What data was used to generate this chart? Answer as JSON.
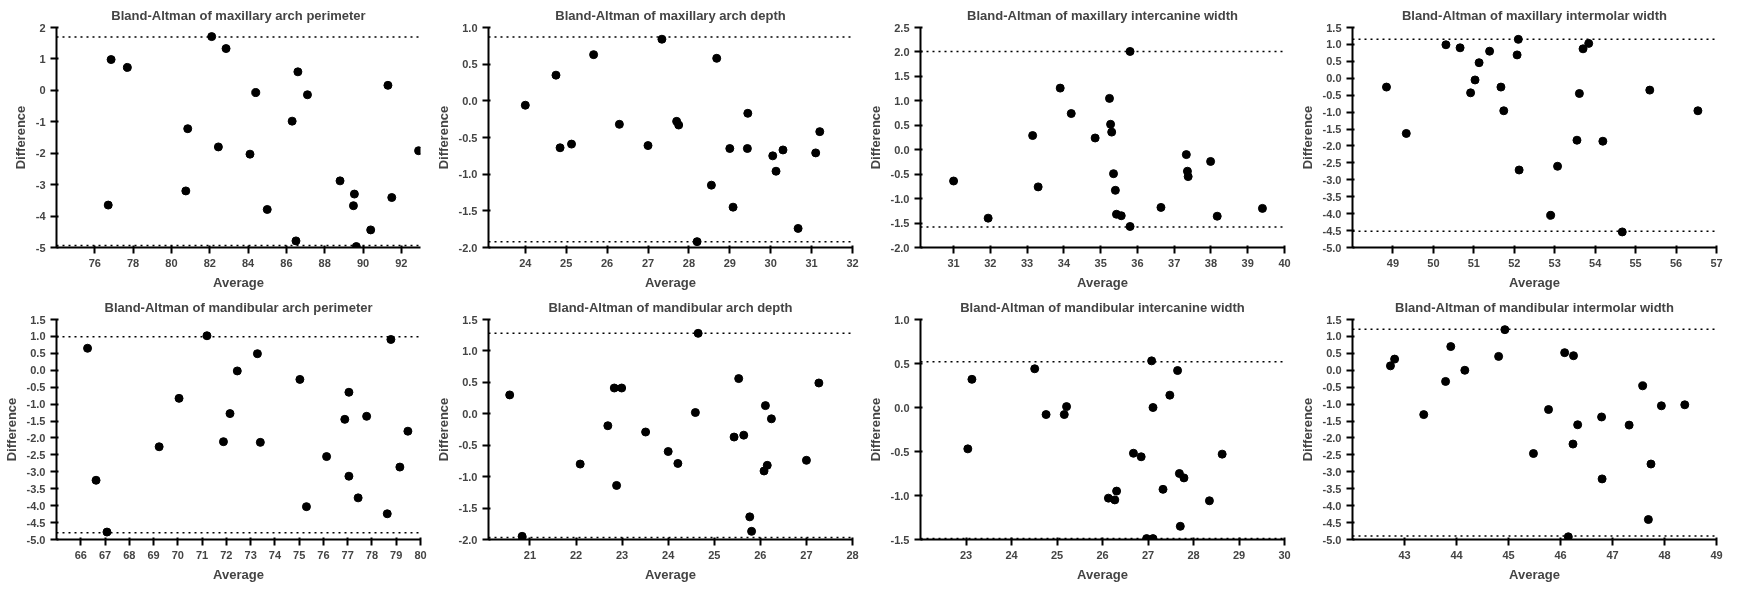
{
  "chart_data": [
    {
      "type": "scatter",
      "title": "Bland-Altman of maxillary arch perimeter",
      "xlabel": "Average",
      "ylabel": "Difference",
      "marker": "circle",
      "grid": false,
      "xlim": [
        74,
        93
      ],
      "xticks": [
        76,
        78,
        80,
        82,
        84,
        86,
        88,
        90,
        92
      ],
      "ylim": [
        -5,
        2
      ],
      "yticks": [
        -5,
        -4,
        -3,
        -2,
        -1,
        0,
        1,
        2
      ],
      "ref_lines": [
        {
          "axis": "y",
          "value": 1.7,
          "line_style": "dotted"
        },
        {
          "axis": "y",
          "value": -4.94,
          "line_style": "dotted"
        }
      ],
      "series": [
        {
          "color": "#000000",
          "x": [
            76.85,
            77.7,
            82.1,
            82.85,
            84.4,
            86.6,
            87.1,
            91.3,
            86.3,
            80.85,
            82.45,
            84.1,
            92.9,
            76.7,
            80.75,
            88.8,
            89.55,
            89.5,
            91.5,
            85.0,
            90.4,
            86.5,
            89.65
          ],
          "values": [
            0.98,
            0.73,
            1.71,
            1.33,
            -0.07,
            0.59,
            -0.14,
            0.16,
            -0.98,
            -1.22,
            -1.8,
            -2.03,
            -1.92,
            -3.65,
            -3.2,
            -2.88,
            -3.3,
            -3.67,
            -3.41,
            -3.79,
            -4.44,
            -4.79,
            -4.97
          ]
        }
      ]
    },
    {
      "type": "scatter",
      "title": "Bland-Altman of maxillary arch depth",
      "xlabel": "Average",
      "ylabel": "Difference",
      "marker": "circle",
      "grid": false,
      "xlim": [
        23.1,
        32
      ],
      "xticks": [
        24,
        25,
        26,
        27,
        28,
        29,
        30,
        31,
        32
      ],
      "ylim": [
        -2,
        1
      ],
      "yticks": [
        {
          "value": -2,
          "label": "-2.0"
        },
        -1.5,
        {
          "value": -1,
          "label": "-1.0"
        },
        -0.5,
        {
          "value": 0,
          "label": "0.0"
        },
        0.5,
        {
          "value": 1,
          "label": "1.0"
        }
      ],
      "ref_lines": [
        {
          "axis": "y",
          "value": 0.87,
          "line_style": "dotted"
        },
        {
          "axis": "y",
          "value": -1.92,
          "line_style": "dotted"
        }
      ],
      "series": [
        {
          "color": "#000000",
          "x": [
            24.0,
            24.75,
            25.67,
            27.34,
            28.68,
            24.85,
            25.13,
            26.3,
            27.0,
            27.7,
            27.75,
            29.44,
            29.0,
            29.43,
            30.05,
            30.3,
            30.13,
            31.2,
            31.1,
            28.55,
            29.08,
            30.67,
            28.2
          ],
          "values": [
            -0.06,
            0.35,
            0.63,
            0.84,
            0.58,
            -0.64,
            -0.59,
            -0.32,
            -0.61,
            -0.28,
            -0.33,
            -0.17,
            -0.65,
            -0.65,
            -0.75,
            -0.67,
            -0.96,
            -0.42,
            -0.71,
            -1.15,
            -1.45,
            -1.74,
            -1.92
          ]
        }
      ]
    },
    {
      "type": "scatter",
      "title": "Bland-Altman of maxillary intercanine width",
      "xlabel": "Average",
      "ylabel": "Difference",
      "marker": "circle",
      "grid": false,
      "xlim": [
        30.1,
        40
      ],
      "xticks": [
        31,
        32,
        33,
        34,
        35,
        36,
        37,
        38,
        39,
        40
      ],
      "ylim": [
        -2,
        2.5
      ],
      "yticks": [
        {
          "value": -2,
          "label": "-2.0"
        },
        -1.5,
        {
          "value": -1,
          "label": "-1.0"
        },
        -0.5,
        {
          "value": 0,
          "label": "0.0"
        },
        0.5,
        {
          "value": 1,
          "label": "1.0"
        },
        1.5,
        {
          "value": 2,
          "label": "2.0"
        },
        2.5
      ],
      "ref_lines": [
        {
          "axis": "y",
          "value": 2.01,
          "line_style": "dotted"
        },
        {
          "axis": "y",
          "value": -1.58,
          "line_style": "dotted"
        }
      ],
      "series": [
        {
          "color": "#000000",
          "x": [
            35.8,
            33.9,
            34.2,
            33.15,
            34.85,
            35.24,
            35.27,
            35.3,
            37.33,
            37.99,
            37.36,
            37.38,
            35.35,
            35.4,
            31.0,
            33.3,
            31.94,
            35.43,
            35.56,
            36.64,
            38.17,
            39.4,
            35.8
          ],
          "values": [
            2.01,
            1.26,
            0.74,
            0.29,
            0.24,
            1.05,
            0.52,
            0.36,
            -0.1,
            -0.24,
            -0.44,
            -0.55,
            -0.49,
            -0.83,
            -0.64,
            -0.76,
            -1.4,
            -1.32,
            -1.35,
            -1.18,
            -1.36,
            -1.2,
            -1.57
          ]
        }
      ]
    },
    {
      "type": "scatter",
      "title": "Bland-Altman of maxillary intermolar width",
      "xlabel": "Average",
      "ylabel": "Difference",
      "marker": "circle",
      "grid": false,
      "xlim": [
        48,
        57
      ],
      "xticks": [
        49,
        50,
        51,
        52,
        53,
        54,
        55,
        56,
        57
      ],
      "ylim": [
        -5,
        1.5
      ],
      "yticks": [
        {
          "value": -5,
          "label": "-5.0"
        },
        -4.5,
        {
          "value": -4,
          "label": "-4.0"
        },
        -3.5,
        {
          "value": -3,
          "label": "-3.0"
        },
        -2.5,
        {
          "value": -2,
          "label": "-2.0"
        },
        -1.5,
        {
          "value": -1,
          "label": "-1.0"
        },
        -0.5,
        {
          "value": 0,
          "label": "0.0"
        },
        0.5,
        {
          "value": 1,
          "label": "1.0"
        },
        1.5
      ],
      "ref_lines": [
        {
          "axis": "y",
          "value": 1.15,
          "line_style": "dotted"
        },
        {
          "axis": "y",
          "value": -4.52,
          "line_style": "dotted"
        }
      ],
      "series": [
        {
          "color": "#000000",
          "x": [
            50.31,
            50.66,
            51.13,
            51.39,
            52.1,
            52.07,
            53.7,
            53.84,
            48.84,
            51.03,
            50.92,
            51.67,
            51.74,
            53.61,
            55.35,
            56.54,
            49.33,
            53.55,
            54.19,
            52.12,
            53.07,
            52.9,
            54.67
          ],
          "values": [
            0.99,
            0.9,
            0.46,
            0.8,
            1.15,
            0.69,
            0.87,
            1.03,
            -0.26,
            -0.05,
            -0.43,
            -0.26,
            -0.96,
            -0.45,
            -0.35,
            -0.96,
            -1.63,
            -1.83,
            -1.86,
            -2.71,
            -2.6,
            -4.05,
            -4.54
          ]
        }
      ]
    },
    {
      "type": "scatter",
      "title": "Bland-Altman of mandibular arch perimeter",
      "xlabel": "Average",
      "ylabel": "Difference",
      "marker": "circle",
      "grid": false,
      "xlim": [
        65,
        80
      ],
      "xticks": [
        66,
        67,
        68,
        69,
        70,
        71,
        72,
        73,
        74,
        75,
        76,
        77,
        78,
        79,
        80
      ],
      "ylim": [
        -5,
        1.5
      ],
      "yticks": [
        {
          "value": -5,
          "label": "-5.0"
        },
        -4.5,
        {
          "value": -4,
          "label": "-4.0"
        },
        -3.5,
        {
          "value": -3,
          "label": "-3.0"
        },
        -2.5,
        {
          "value": -2,
          "label": "-2.0"
        },
        -1.5,
        {
          "value": -1,
          "label": "-1.0"
        },
        -0.5,
        {
          "value": 0,
          "label": "0.0"
        },
        0.5,
        {
          "value": 1,
          "label": "1.0"
        },
        1.5
      ],
      "ref_lines": [
        {
          "axis": "y",
          "value": 0.99,
          "line_style": "dotted"
        },
        {
          "axis": "y",
          "value": -4.8,
          "line_style": "dotted"
        }
      ],
      "series": [
        {
          "color": "#000000",
          "x": [
            66.28,
            71.2,
            73.28,
            72.45,
            75.03,
            78.78,
            70.05,
            72.15,
            77.05,
            76.88,
            77.78,
            79.48,
            69.23,
            71.88,
            73.4,
            76.13,
            79.15,
            66.63,
            77.05,
            77.43,
            75.3,
            78.63,
            67.08
          ],
          "values": [
            0.65,
            1.02,
            0.49,
            -0.02,
            -0.27,
            0.91,
            -0.83,
            -1.28,
            -0.65,
            -1.45,
            -1.36,
            -1.8,
            -2.26,
            -2.11,
            -2.13,
            -2.55,
            -2.86,
            -3.25,
            -3.13,
            -3.77,
            -4.03,
            -4.24,
            -4.78
          ]
        }
      ]
    },
    {
      "type": "scatter",
      "title": "Bland-Altman of mandibular arch depth",
      "xlabel": "Average",
      "ylabel": "Difference",
      "marker": "circle",
      "grid": false,
      "xlim": [
        20.1,
        28
      ],
      "xticks": [
        21,
        22,
        23,
        24,
        25,
        26,
        27,
        28
      ],
      "ylim": [
        -2,
        1.5
      ],
      "yticks": [
        {
          "value": -2,
          "label": "-2.0"
        },
        -1.5,
        {
          "value": -1,
          "label": "-1.0"
        },
        -0.5,
        {
          "value": 0,
          "label": "0.0"
        },
        0.5,
        {
          "value": 1,
          "label": "1.0"
        },
        1.5
      ],
      "ref_lines": [
        {
          "axis": "y",
          "value": 1.28,
          "line_style": "dotted"
        },
        {
          "axis": "y",
          "value": -1.97,
          "line_style": "dotted"
        }
      ],
      "series": [
        {
          "color": "#000000",
          "x": [
            24.65,
            20.56,
            22.83,
            22.99,
            25.53,
            26.11,
            27.27,
            24.59,
            26.24,
            22.69,
            23.51,
            25.43,
            25.64,
            22.09,
            24.0,
            24.21,
            22.88,
            26.15,
            26.08,
            27.0,
            25.77,
            25.81,
            20.83
          ],
          "values": [
            1.28,
            0.3,
            0.41,
            0.41,
            0.56,
            0.13,
            0.49,
            0.02,
            -0.08,
            -0.19,
            -0.29,
            -0.37,
            -0.34,
            -0.8,
            -0.6,
            -0.79,
            -1.14,
            -0.82,
            -0.91,
            -0.74,
            -1.64,
            -1.87,
            -1.95
          ]
        }
      ]
    },
    {
      "type": "scatter",
      "title": "Bland-Altman of mandibular intercanine width",
      "xlabel": "Average",
      "ylabel": "Difference",
      "marker": "circle",
      "grid": false,
      "xlim": [
        22,
        30
      ],
      "xticks": [
        23,
        24,
        25,
        26,
        27,
        28,
        29,
        30
      ],
      "ylim": [
        -1.5,
        1
      ],
      "yticks": [
        -1.5,
        {
          "value": -1,
          "label": "-1.0"
        },
        -0.5,
        {
          "value": 0,
          "label": "0.0"
        },
        0.5,
        {
          "value": 1,
          "label": "1.0"
        }
      ],
      "ref_lines": [
        {
          "axis": "y",
          "value": 0.52,
          "line_style": "dotted"
        },
        {
          "axis": "y",
          "value": -1.49,
          "line_style": "dotted"
        }
      ],
      "series": [
        {
          "color": "#000000",
          "x": [
            23.13,
            24.51,
            24.76,
            25.16,
            25.21,
            27.08,
            27.65,
            27.48,
            27.11,
            23.04,
            26.68,
            26.85,
            28.63,
            26.31,
            26.13,
            26.27,
            27.33,
            27.69,
            27.79,
            28.35,
            27.71,
            26.97,
            27.11
          ],
          "values": [
            0.32,
            0.44,
            -0.08,
            -0.08,
            0.01,
            0.53,
            0.42,
            0.14,
            0.0,
            -0.47,
            -0.52,
            -0.56,
            -0.53,
            -0.95,
            -1.03,
            -1.05,
            -0.93,
            -0.75,
            -0.8,
            -1.06,
            -1.35,
            -1.49,
            -1.49
          ]
        }
      ]
    },
    {
      "type": "scatter",
      "title": "Bland-Altman of mandibular intermolar width",
      "xlabel": "Average",
      "ylabel": "Difference",
      "marker": "circle",
      "grid": false,
      "xlim": [
        42,
        49
      ],
      "xticks": [
        43,
        44,
        45,
        46,
        47,
        48,
        49
      ],
      "ylim": [
        -5,
        1.5
      ],
      "yticks": [
        {
          "value": -5,
          "label": "-5.0"
        },
        -4.5,
        {
          "value": -4,
          "label": "-4.0"
        },
        -3.5,
        {
          "value": -3,
          "label": "-3.0"
        },
        -2.5,
        {
          "value": -2,
          "label": "-2.0"
        },
        -1.5,
        {
          "value": -1,
          "label": "-1.0"
        },
        -0.5,
        {
          "value": 0,
          "label": "0.0"
        },
        0.5,
        {
          "value": 1,
          "label": "1.0"
        },
        1.5
      ],
      "ref_lines": [
        {
          "axis": "y",
          "value": 1.21,
          "line_style": "dotted"
        },
        {
          "axis": "y",
          "value": -4.9,
          "line_style": "dotted"
        }
      ],
      "series": [
        {
          "color": "#000000",
          "x": [
            42.73,
            42.81,
            43.89,
            43.79,
            44.16,
            44.93,
            44.81,
            46.08,
            46.25,
            43.37,
            47.58,
            47.94,
            48.39,
            45.77,
            46.33,
            46.79,
            47.32,
            45.48,
            46.24,
            47.74,
            46.8,
            47.69,
            46.15
          ],
          "values": [
            0.13,
            0.33,
            0.7,
            -0.33,
            0.0,
            1.2,
            0.41,
            0.52,
            0.43,
            -1.31,
            -0.46,
            -1.05,
            -1.02,
            -1.16,
            -1.61,
            -1.38,
            -1.62,
            -2.46,
            -2.18,
            -2.77,
            -3.21,
            -4.41,
            -4.92
          ]
        }
      ]
    }
  ]
}
